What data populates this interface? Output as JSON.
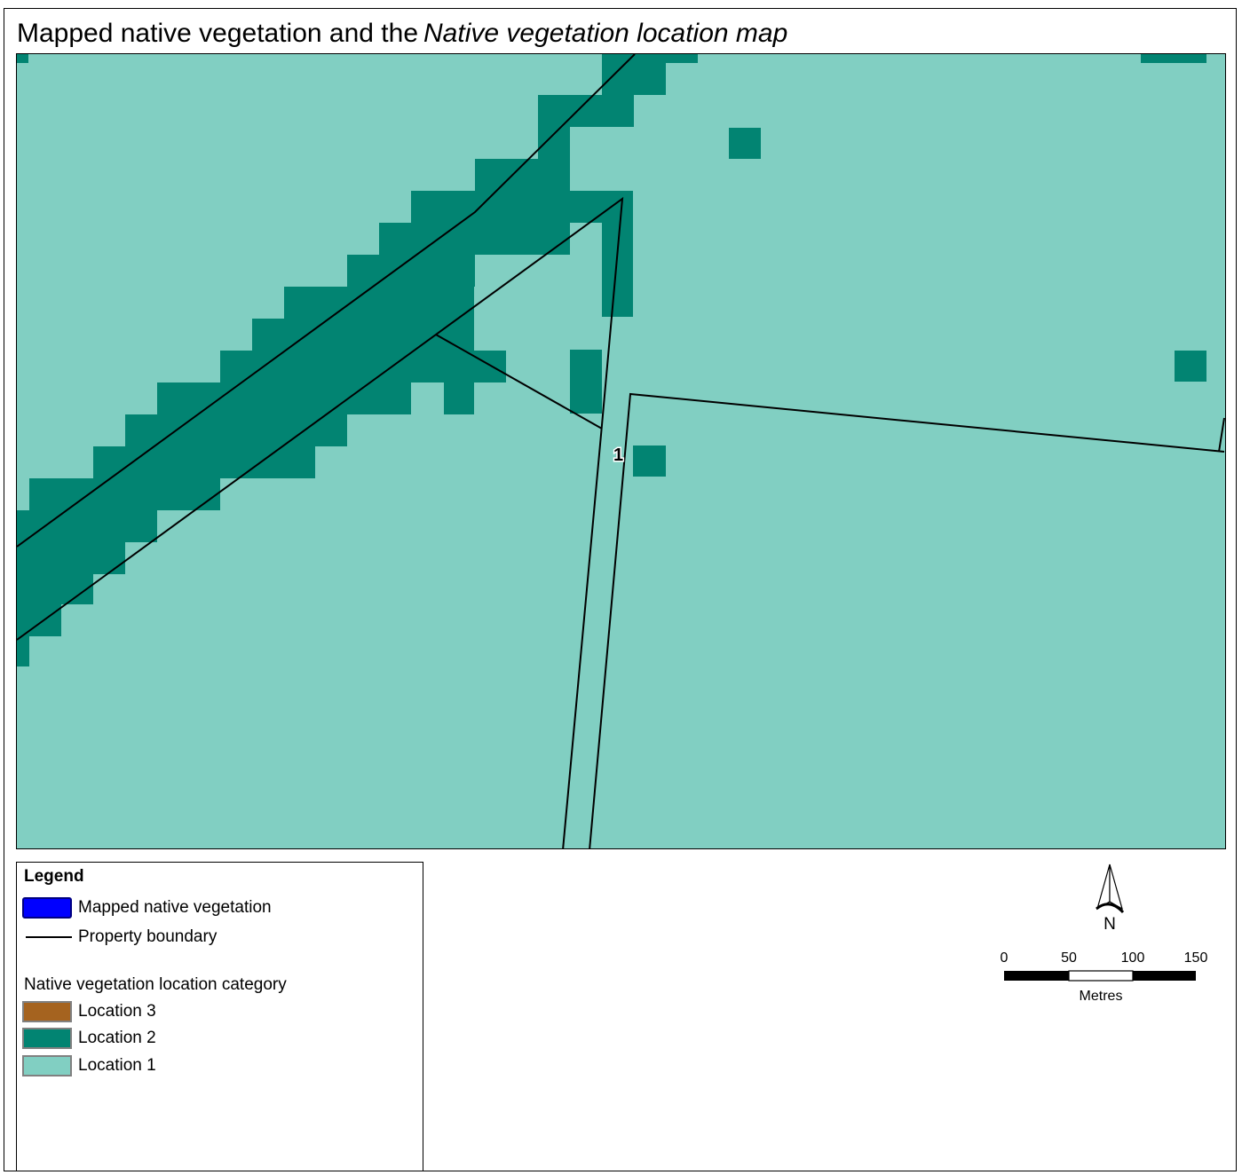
{
  "title": {
    "plain": "Mapped native vegetation and the",
    "italic": "Native vegetation location map"
  },
  "map": {
    "parcel_label": "1",
    "colors": {
      "location_1": "#81cfc2",
      "location_2": "#028472",
      "location_3": "#a5631f",
      "mapped_native_vegetation": "#0000ff",
      "property_boundary": "#000000"
    }
  },
  "legend": {
    "title": "Legend",
    "items": [
      {
        "label": "Mapped native vegetation",
        "symbol": "blue-polygon"
      },
      {
        "label": "Property boundary",
        "symbol": "black-line"
      }
    ],
    "category_heading": "Native vegetation location category",
    "categories": [
      {
        "label": "Location 3",
        "color": "#a5631f"
      },
      {
        "label": "Location 2",
        "color": "#028472"
      },
      {
        "label": "Location 1",
        "color": "#81cfc2"
      }
    ]
  },
  "north_arrow": {
    "label": "N"
  },
  "scale_bar": {
    "ticks": [
      "0",
      "50",
      "100",
      "150"
    ],
    "unit": "Metres"
  }
}
